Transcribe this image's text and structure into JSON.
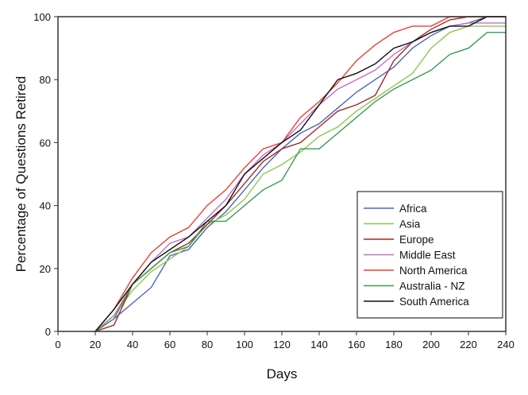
{
  "chart_data": {
    "type": "line",
    "title": "",
    "xlabel": "Days",
    "ylabel": "Percentage of Questions Retired",
    "xlim": [
      0,
      240
    ],
    "ylim": [
      0,
      100
    ],
    "xticks": [
      0,
      20,
      40,
      60,
      80,
      100,
      120,
      140,
      160,
      180,
      200,
      220,
      240
    ],
    "yticks": [
      0,
      20,
      40,
      60,
      80,
      100
    ],
    "grid": false,
    "legend_position": "bottom-right",
    "x": [
      20,
      30,
      40,
      50,
      60,
      70,
      80,
      90,
      100,
      110,
      120,
      130,
      140,
      150,
      160,
      170,
      180,
      190,
      200,
      210,
      220,
      230,
      240
    ],
    "series": [
      {
        "name": "Africa",
        "color": "#4a64c0",
        "values": [
          0,
          4,
          9,
          14,
          24,
          26,
          33,
          38,
          45,
          52,
          58,
          63,
          66,
          71,
          76,
          80,
          84,
          90,
          94,
          97,
          98,
          100,
          100
        ]
      },
      {
        "name": "Asia",
        "color": "#8cc850",
        "values": [
          0,
          5,
          13,
          19,
          23,
          27,
          34,
          37,
          42,
          50,
          53,
          57,
          62,
          65,
          70,
          74,
          78,
          82,
          90,
          95,
          97,
          97,
          97
        ]
      },
      {
        "name": "Europe",
        "color": "#a0282a",
        "values": [
          0,
          2,
          15,
          20,
          25,
          28,
          34,
          40,
          47,
          54,
          58,
          60,
          65,
          70,
          72,
          75,
          86,
          92,
          96,
          99,
          100,
          100,
          100
        ]
      },
      {
        "name": "Middle East",
        "color": "#c070c8",
        "values": [
          0,
          5,
          15,
          22,
          28,
          30,
          36,
          42,
          50,
          56,
          60,
          66,
          72,
          77,
          80,
          83,
          88,
          92,
          95,
          97,
          98,
          98,
          98
        ]
      },
      {
        "name": "North America",
        "color": "#e84030",
        "values": [
          0,
          7,
          17,
          25,
          30,
          33,
          40,
          45,
          52,
          58,
          60,
          68,
          73,
          79,
          86,
          91,
          95,
          97,
          97,
          100,
          100,
          100,
          100
        ]
      },
      {
        "name": "Australia - NZ",
        "color": "#3a9a50",
        "values": [
          0,
          4,
          15,
          20,
          25,
          27,
          35,
          35,
          40,
          45,
          48,
          58,
          58,
          63,
          68,
          73,
          77,
          80,
          83,
          88,
          90,
          95,
          95
        ]
      },
      {
        "name": "South America",
        "color": "#111111",
        "values": [
          0,
          7,
          15,
          22,
          26,
          30,
          35,
          40,
          50,
          55,
          60,
          64,
          72,
          80,
          82,
          85,
          90,
          92,
          95,
          97,
          97,
          100,
          100
        ]
      }
    ]
  }
}
